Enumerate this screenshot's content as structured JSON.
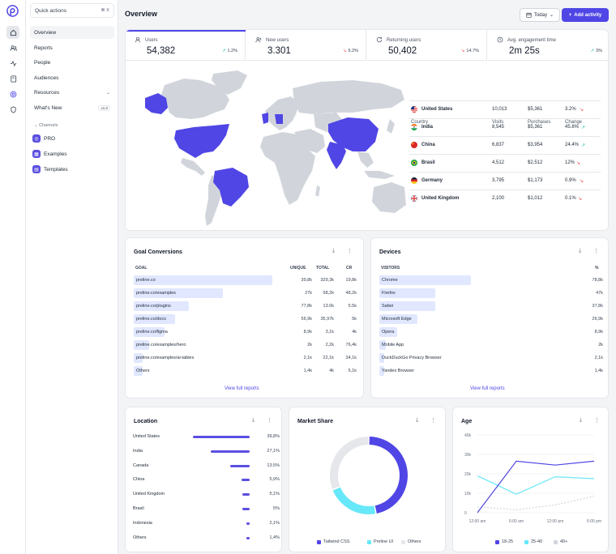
{
  "sidebar": {
    "quick_actions": "Quick actions",
    "shortcut": "⌘ K",
    "nav": [
      {
        "label": "Overview"
      },
      {
        "label": "Reports"
      },
      {
        "label": "People"
      },
      {
        "label": "Audiences"
      },
      {
        "label": "Resources"
      },
      {
        "label": "What's New",
        "badge": "v1.0"
      }
    ],
    "channels_title": "Channels",
    "channels": [
      {
        "label": "PRO"
      },
      {
        "label": "Examples"
      },
      {
        "label": "Templates"
      }
    ]
  },
  "header": {
    "title": "Overview",
    "date_select": "Today",
    "add_button": "Add activity"
  },
  "stats": [
    {
      "label": "Users",
      "value": "54,382",
      "change": "1.2%",
      "dir": "up"
    },
    {
      "label": "New users",
      "value": "3.301",
      "change": "5.2%",
      "dir": "down"
    },
    {
      "label": "Returning users",
      "value": "50,402",
      "change": "14.7%",
      "dir": "down"
    },
    {
      "label": "Avg. engagement time",
      "value": "2m 25s",
      "change": "3%",
      "dir": "up"
    }
  ],
  "countries_table": {
    "headers": [
      "Country",
      "Visits",
      "Purchases",
      "Change"
    ],
    "rows": [
      {
        "country": "United States",
        "visits": "10,013",
        "purchases": "$5,361",
        "change": "3.2%",
        "dir": "down"
      },
      {
        "country": "India",
        "visits": "8,545",
        "purchases": "$5,361",
        "change": "45.8%",
        "dir": "up"
      },
      {
        "country": "China",
        "visits": "6,837",
        "purchases": "$3,954",
        "change": "24.4%",
        "dir": "up"
      },
      {
        "country": "Brasil",
        "visits": "4,512",
        "purchases": "$2,512",
        "change": "12%",
        "dir": "down"
      },
      {
        "country": "Germany",
        "visits": "3,795",
        "purchases": "$1,173",
        "change": "0.9%",
        "dir": "down"
      },
      {
        "country": "United Kingdom",
        "visits": "2,100",
        "purchases": "$1,012",
        "change": "0.1%",
        "dir": "down"
      }
    ]
  },
  "goal_conversions": {
    "title": "Goal Conversions",
    "headers": [
      "GOAL",
      "UNIQUE",
      "TOTAL",
      "CR"
    ],
    "rows": [
      {
        "goal": "preline.co",
        "unique": "39,8k",
        "total": "329,3k",
        "cr": "19,8k",
        "fill": 0.9
      },
      {
        "goal": "preline.co/examples",
        "unique": "27k",
        "total": "58,2k",
        "cr": "48,2k",
        "fill": 0.58
      },
      {
        "goal": "preline.co/plugins",
        "unique": "77,8k",
        "total": "13.0k",
        "cr": "5.5k",
        "fill": 0.36
      },
      {
        "goal": "preline.co/docs",
        "unique": "56,9k",
        "total": "35,97k",
        "cr": "5k",
        "fill": 0.27
      },
      {
        "goal": "preline.co/figma",
        "unique": "8,9k",
        "total": "3,1k",
        "cr": "4k",
        "fill": 0.2
      },
      {
        "goal": "preline.co/examples/hero",
        "unique": "2k",
        "total": "2,2k",
        "cr": "76,4k",
        "fill": 0.1
      },
      {
        "goal": "preline.co/examples/ai-tables",
        "unique": "2,1k",
        "total": "22,1k",
        "cr": "34,1k",
        "fill": 0.06
      },
      {
        "goal": "Others",
        "unique": "1,4k",
        "total": "4k",
        "cr": "5,1k",
        "fill": 0.06
      }
    ],
    "view_full": "View full reports"
  },
  "devices": {
    "title": "Devices",
    "headers": [
      "VISITORS",
      "%"
    ],
    "rows": [
      {
        "name": "Chrome",
        "pct": "78,8k",
        "fill": 0.41
      },
      {
        "name": "Firefox",
        "pct": "47k",
        "fill": 0.25
      },
      {
        "name": "Safari",
        "pct": "37,8k",
        "fill": 0.25
      },
      {
        "name": "Microsoft Edge",
        "pct": "26,9k",
        "fill": 0.17
      },
      {
        "name": "Opera",
        "pct": "8,9k",
        "fill": 0.08
      },
      {
        "name": "Mobile App",
        "pct": "2k",
        "fill": 0.03
      },
      {
        "name": "DuckDuckGo Privacy Browser",
        "pct": "2,1k",
        "fill": 0.02
      },
      {
        "name": "Yandex Browser",
        "pct": "1,4k",
        "fill": 0.02
      }
    ],
    "view_full": "View full reports"
  },
  "location": {
    "title": "Location",
    "rows": [
      {
        "name": "United States",
        "value": "39,8%",
        "share": 0.398
      },
      {
        "name": "India",
        "value": "27,1%",
        "share": 0.271
      },
      {
        "name": "Canada",
        "value": "13.5%",
        "share": 0.135
      },
      {
        "name": "China",
        "value": "5,9%",
        "share": 0.059
      },
      {
        "name": "United Kingdom",
        "value": "5,1%",
        "share": 0.051
      },
      {
        "name": "Brasil",
        "value": "5%",
        "share": 0.05
      },
      {
        "name": "Indonesia",
        "value": "2,1%",
        "share": 0.021
      },
      {
        "name": "Others",
        "value": "1,4%",
        "share": 0.014
      }
    ]
  },
  "market_share": {
    "title": "Market Share"
  },
  "age": {
    "title": "Age"
  },
  "chart_data": [
    {
      "type": "pie",
      "title": "Market Share",
      "categories": [
        "Tailwind CSS",
        "Preline UI",
        "Others"
      ],
      "values": [
        47,
        22,
        31
      ],
      "colors": [
        "#5046e5",
        "#67e8f9",
        "#e5e7eb"
      ],
      "donut": true,
      "legend": "bottom"
    },
    {
      "type": "line",
      "title": "Age",
      "x": [
        "12:00 am",
        "6:00 am",
        "12:00 pm",
        "6:00 pm"
      ],
      "ylim": [
        0,
        40000
      ],
      "yticks": [
        "0",
        "10k",
        "20k",
        "30k",
        "40k"
      ],
      "series": [
        {
          "name": "18-25",
          "color": "#5046e5",
          "values": [
            0,
            26500,
            24500,
            26500
          ],
          "dash": false
        },
        {
          "name": "25-40",
          "color": "#67e8f9",
          "values": [
            19000,
            9500,
            18500,
            17500
          ],
          "dash": false
        },
        {
          "name": "40+",
          "color": "#d1d5db",
          "values": [
            3000,
            1500,
            4000,
            8500
          ],
          "dash": true
        }
      ],
      "grid": true,
      "legend": "bottom"
    }
  ],
  "map": {
    "highlighted": [
      "United States",
      "Alaska",
      "Brasil",
      "India",
      "China",
      "Germany",
      "United Kingdom"
    ],
    "highlight_color": "#5046e5",
    "base_color": "#d1d5db"
  }
}
